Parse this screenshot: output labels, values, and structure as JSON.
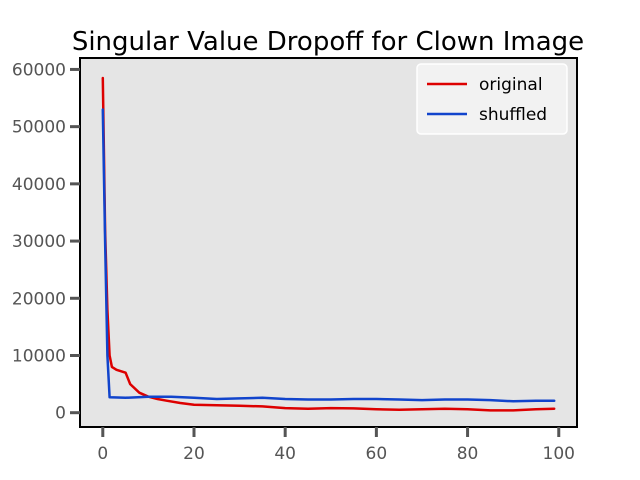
{
  "chart_data": {
    "type": "line",
    "title": "Singular Value Dropoff for Clown Image",
    "xlabel": "",
    "ylabel": "",
    "xlim": [
      -5,
      104
    ],
    "ylim": [
      -2500,
      62000
    ],
    "xticks": [
      0,
      20,
      40,
      60,
      80,
      100
    ],
    "yticks": [
      0,
      10000,
      20000,
      30000,
      40000,
      50000,
      60000
    ],
    "grid": false,
    "legend_position": "top-right",
    "background": "#e5e5e5",
    "series": [
      {
        "name": "original",
        "color": "#dd0000",
        "x": [
          0,
          0.5,
          1,
          1.5,
          2,
          3,
          5,
          6,
          8,
          10,
          12,
          14,
          17,
          20,
          25,
          30,
          35,
          40,
          45,
          50,
          55,
          60,
          65,
          70,
          75,
          80,
          85,
          90,
          95,
          99
        ],
        "y": [
          58500,
          32000,
          18000,
          10000,
          8000,
          7500,
          7000,
          5000,
          3500,
          2800,
          2400,
          2100,
          1700,
          1400,
          1300,
          1200,
          1100,
          800,
          700,
          800,
          750,
          600,
          500,
          600,
          700,
          600,
          400,
          400,
          600,
          700
        ]
      },
      {
        "name": "shuffled",
        "color": "#1144cc",
        "x": [
          0,
          0.5,
          1,
          1.5,
          5,
          10,
          15,
          20,
          25,
          30,
          35,
          40,
          45,
          50,
          55,
          60,
          65,
          70,
          75,
          80,
          85,
          90,
          95,
          99
        ],
        "y": [
          53000,
          30000,
          10000,
          2700,
          2600,
          2800,
          2800,
          2600,
          2400,
          2500,
          2600,
          2400,
          2300,
          2300,
          2400,
          2400,
          2300,
          2200,
          2300,
          2300,
          2200,
          2000,
          2100,
          2100
        ]
      }
    ]
  }
}
